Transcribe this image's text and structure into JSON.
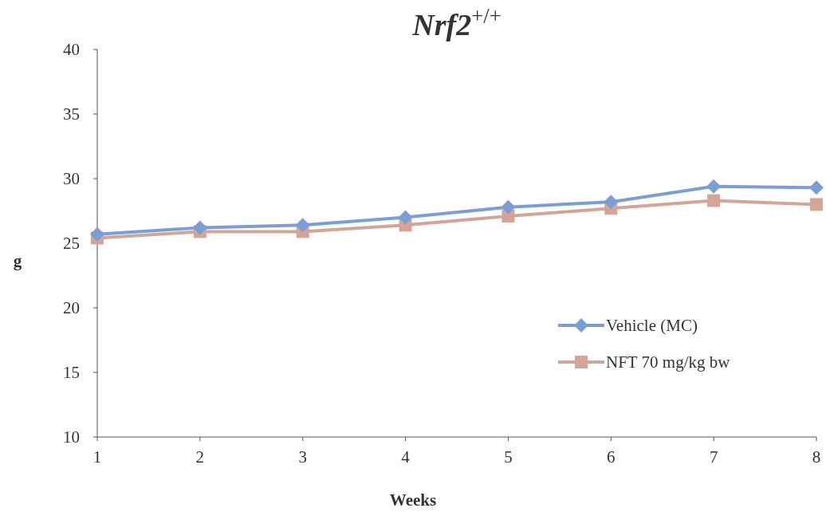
{
  "chart_data": {
    "type": "line",
    "title": "Nrf2$^{+/+}$",
    "xlabel": "Weeks",
    "ylabel": "g",
    "x": [
      1,
      2,
      3,
      4,
      5,
      6,
      7,
      8
    ],
    "xlim": [
      1,
      8
    ],
    "xticks": [
      1,
      2,
      3,
      4,
      5,
      6,
      7,
      8
    ],
    "ylim": [
      10,
      40
    ],
    "yticks": [
      10,
      15,
      20,
      25,
      30,
      35,
      40
    ],
    "grid": false,
    "legend": "right",
    "line_style": "solid",
    "series": [
      {
        "name": "Vehicle (MC)",
        "color": "#7b9fd4",
        "marker": "diamond",
        "values": [
          25.7,
          26.2,
          26.4,
          27.0,
          27.8,
          28.2,
          29.4,
          29.3
        ]
      },
      {
        "name": "NFT 70 mg/kg bw",
        "color": "#d4a596",
        "marker": "square",
        "values": [
          25.4,
          25.9,
          25.9,
          26.4,
          27.1,
          27.7,
          28.3,
          28.0
        ]
      }
    ]
  }
}
